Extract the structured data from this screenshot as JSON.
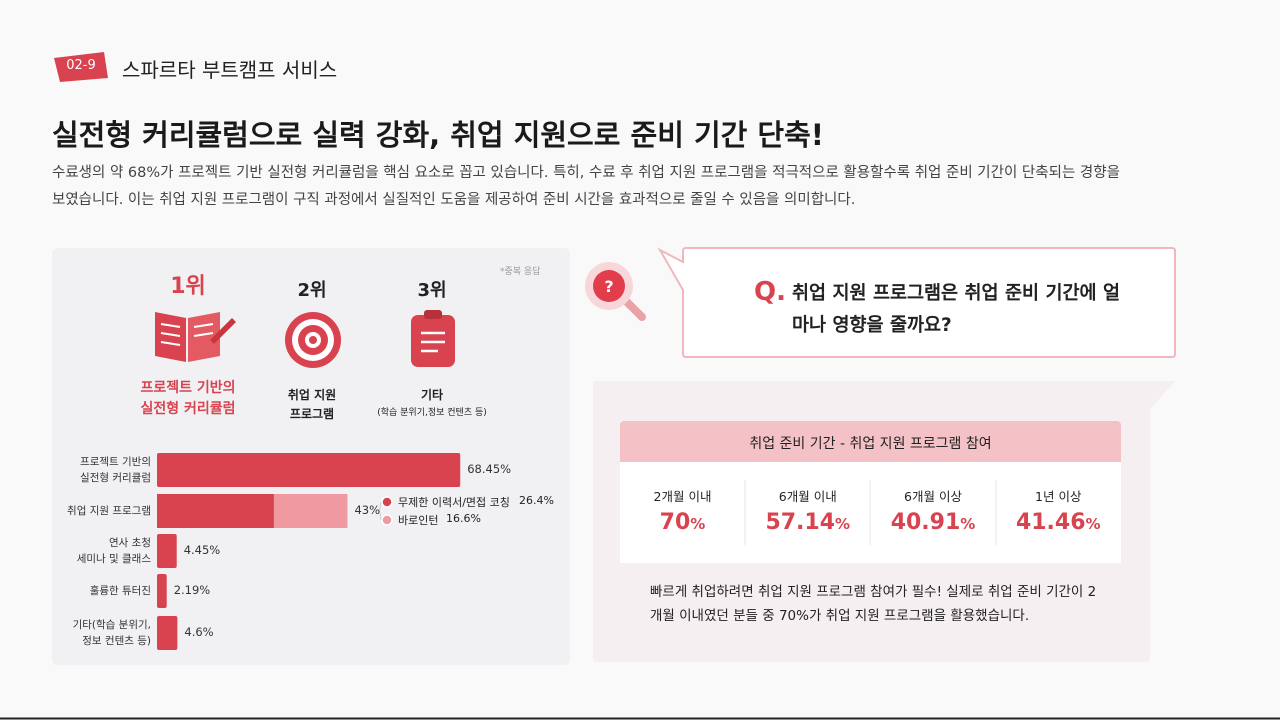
{
  "header": {
    "badge": "02-9",
    "section": "스파르타 부트캠프 서비스"
  },
  "title": "실전형 커리큘럼으로 실력 강화, 취업 지원으로 준비 기간 단축!",
  "description": "수료생의 약 68%가 프로젝트 기반 실전형 커리큘럼을 핵심 요소로 꼽고 있습니다. 특히, 수료 후 취업 지원 프로그램을 적극적으로 활용할수록 취업 준비 기간이 단축되는 경향을 보였습니다. 이는 취업 지원 프로그램이 구직 과정에서 실질적인 도움을 제공하여 준비 시간을 효과적으로 줄일 수 있음을 의미합니다.",
  "ranking": {
    "note": "*중복 응답",
    "items": [
      {
        "rank": "1위",
        "label": "프로젝트 기반의\n실전형 커리큘럼"
      },
      {
        "rank": "2위",
        "label": "취업 지원\n프로그램"
      },
      {
        "rank": "3위",
        "label": "기타",
        "sublabel": "(학습 분위기,정보 컨텐츠 등)"
      }
    ]
  },
  "chart_data": {
    "type": "bar",
    "orientation": "horizontal",
    "color": "#d9434f",
    "bars": [
      {
        "category": "프로젝트 기반의\n실전형 커리큘럼",
        "value": 68.45,
        "value_label": "68.45%"
      },
      {
        "category": "취업 지원 프로그램",
        "value": 43,
        "value_label": "43%",
        "segments": [
          {
            "name": "무제한 이력서/면접 코칭",
            "value": 26.4,
            "value_label": "26.4%",
            "color": "#d9434f"
          },
          {
            "name": "바로인턴",
            "value": 16.6,
            "value_label": "16.6%",
            "color": "#ef9aa0"
          }
        ]
      },
      {
        "category": "연사 초청\n세미나 및 클래스",
        "value": 4.45,
        "value_label": "4.45%"
      },
      {
        "category": "훌륭한 튜터진",
        "value": 2.19,
        "value_label": "2.19%"
      },
      {
        "category": "기타(학습 분위기,\n정보 컨텐츠 등)",
        "value": 4.6,
        "value_label": "4.6%"
      }
    ]
  },
  "question": {
    "mark": "Q.",
    "text": "취업 지원 프로그램은 취업 준비 기간에 얼마나 영향을 줄까요?"
  },
  "table": {
    "title": "취업 준비 기간 - 취업 지원 프로그램 참여",
    "columns": [
      {
        "label": "2개월 이내",
        "value": 70,
        "unit": "%"
      },
      {
        "label": "6개월 이내",
        "value": 57.14,
        "unit": "%"
      },
      {
        "label": "6개월 이상",
        "value": 40.91,
        "unit": "%"
      },
      {
        "label": "1년 이상",
        "value": 41.46,
        "unit": "%"
      }
    ]
  },
  "summary": "빠르게 취업하려면 취업 지원 프로그램 참여가 필수! 실제로 취업 준비 기간이 2개월 이내였던 분들 중 70%가 취업 지원 프로그램을 활용했습니다."
}
